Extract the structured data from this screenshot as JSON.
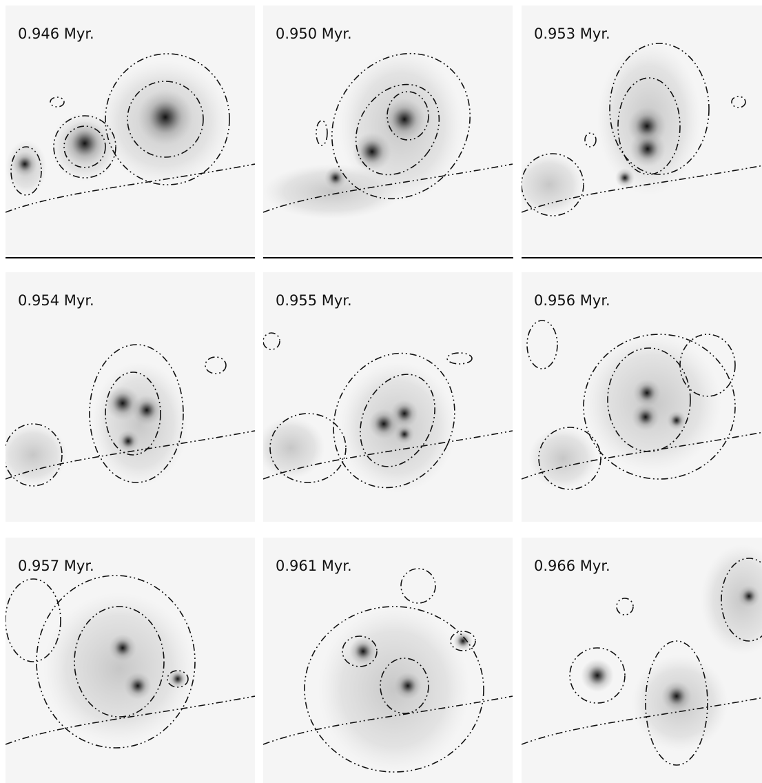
{
  "panels": [
    {
      "label": "0.946 Myr."
    },
    {
      "label": "0.950 Myr."
    },
    {
      "label": "0.953 Myr."
    },
    {
      "label": "0.954 Myr."
    },
    {
      "label": "0.955 Myr."
    },
    {
      "label": "0.956 Myr."
    },
    {
      "label": "0.957 Myr."
    },
    {
      "label": "0.961 Myr."
    },
    {
      "label": "0.966 Myr."
    }
  ]
}
